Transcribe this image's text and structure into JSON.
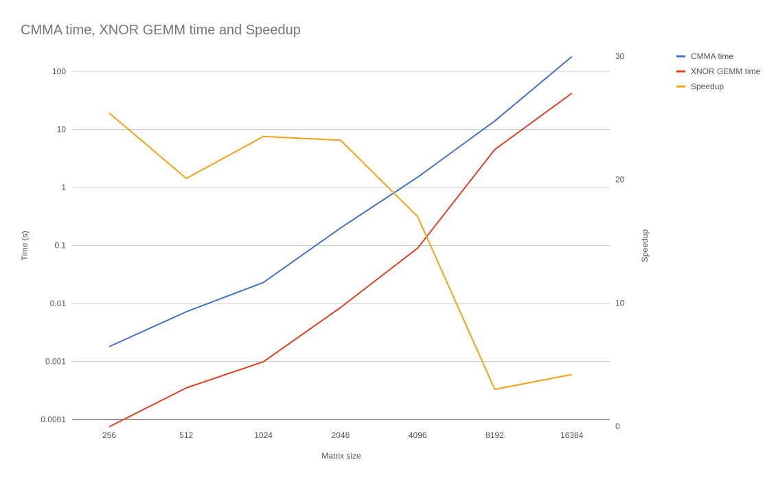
{
  "chart_data": {
    "type": "line",
    "title": "CMMA time, XNOR GEMM time and Speedup",
    "xlabel": "Matrix size",
    "ylabel_left": "Time (s)",
    "ylabel_right": "Speedup",
    "categories": [
      "256",
      "512",
      "1024",
      "2048",
      "4096",
      "8192",
      "16384"
    ],
    "y_left_scale": "log",
    "y_left_ticks": [
      "0.0001",
      "0.001",
      "0.01",
      "0.1",
      "1",
      "10",
      "100"
    ],
    "y_left_tick_values": [
      0.0001,
      0.001,
      0.01,
      0.1,
      1,
      10,
      100
    ],
    "y_right_ticks": [
      "0",
      "10",
      "20",
      "30"
    ],
    "y_right_tick_values": [
      0,
      10,
      20,
      30
    ],
    "y_right_range": [
      0,
      30
    ],
    "grid": true,
    "legend_position": "right",
    "series": [
      {
        "name": "CMMA time",
        "axis": "left",
        "color": "#4472c4",
        "values": [
          0.0018,
          0.0072,
          0.023,
          0.2,
          1.5,
          14,
          180
        ]
      },
      {
        "name": "XNOR GEMM time",
        "axis": "left",
        "color": "#db4325",
        "values": [
          7.5e-05,
          0.00035,
          0.00099,
          0.0085,
          0.09,
          4.5,
          42
        ]
      },
      {
        "name": "Speedup",
        "axis": "right",
        "color": "#f4a117",
        "values": [
          25.4,
          20.1,
          23.5,
          23.2,
          17.0,
          3.0,
          4.2
        ]
      }
    ]
  }
}
